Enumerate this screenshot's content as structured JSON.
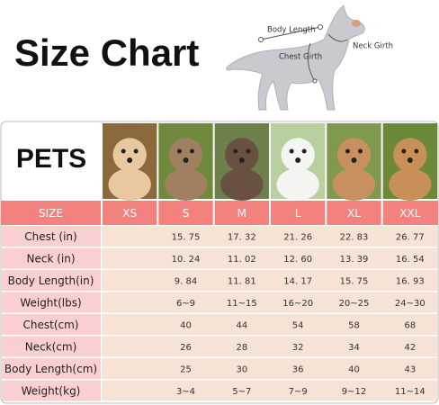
{
  "header": {
    "title": "Size Chart",
    "diagram_labels": {
      "body_length": "Body Length",
      "neck_girth": "Neck Girth",
      "chest_girth": "Chest Girth"
    }
  },
  "table": {
    "corner": "PETS",
    "size_label": "SIZE",
    "sizes": [
      "XS",
      "S",
      "M",
      "L",
      "XL",
      "XXL"
    ],
    "rows": [
      {
        "label": "Chest (in)",
        "values": [
          null,
          "15. 75",
          "17. 32",
          "21. 26",
          "22. 83",
          "26. 77"
        ]
      },
      {
        "label": "Neck (in)",
        "values": [
          null,
          "10. 24",
          "11. 02",
          "12. 60",
          "13. 39",
          "16. 54"
        ]
      },
      {
        "label": "Body Length(in)",
        "values": [
          null,
          "9. 84",
          "11. 81",
          "14. 17",
          "15. 75",
          "16. 93"
        ]
      },
      {
        "label": "Weight(lbs)",
        "values": [
          null,
          "6~9",
          "11~15",
          "16~20",
          "20~25",
          "24~30"
        ]
      },
      {
        "label": "Chest(cm)",
        "values": [
          null,
          "40",
          "44",
          "54",
          "58",
          "68"
        ]
      },
      {
        "label": "Neck(cm)",
        "values": [
          null,
          "26",
          "28",
          "32",
          "34",
          "42"
        ]
      },
      {
        "label": "Body Length(cm)",
        "values": [
          null,
          "25",
          "30",
          "36",
          "40",
          "43"
        ]
      },
      {
        "label": "Weight(kg)",
        "values": [
          null,
          "3~4",
          "5~7",
          "7~9",
          "9~12",
          "11~14"
        ]
      }
    ]
  }
}
